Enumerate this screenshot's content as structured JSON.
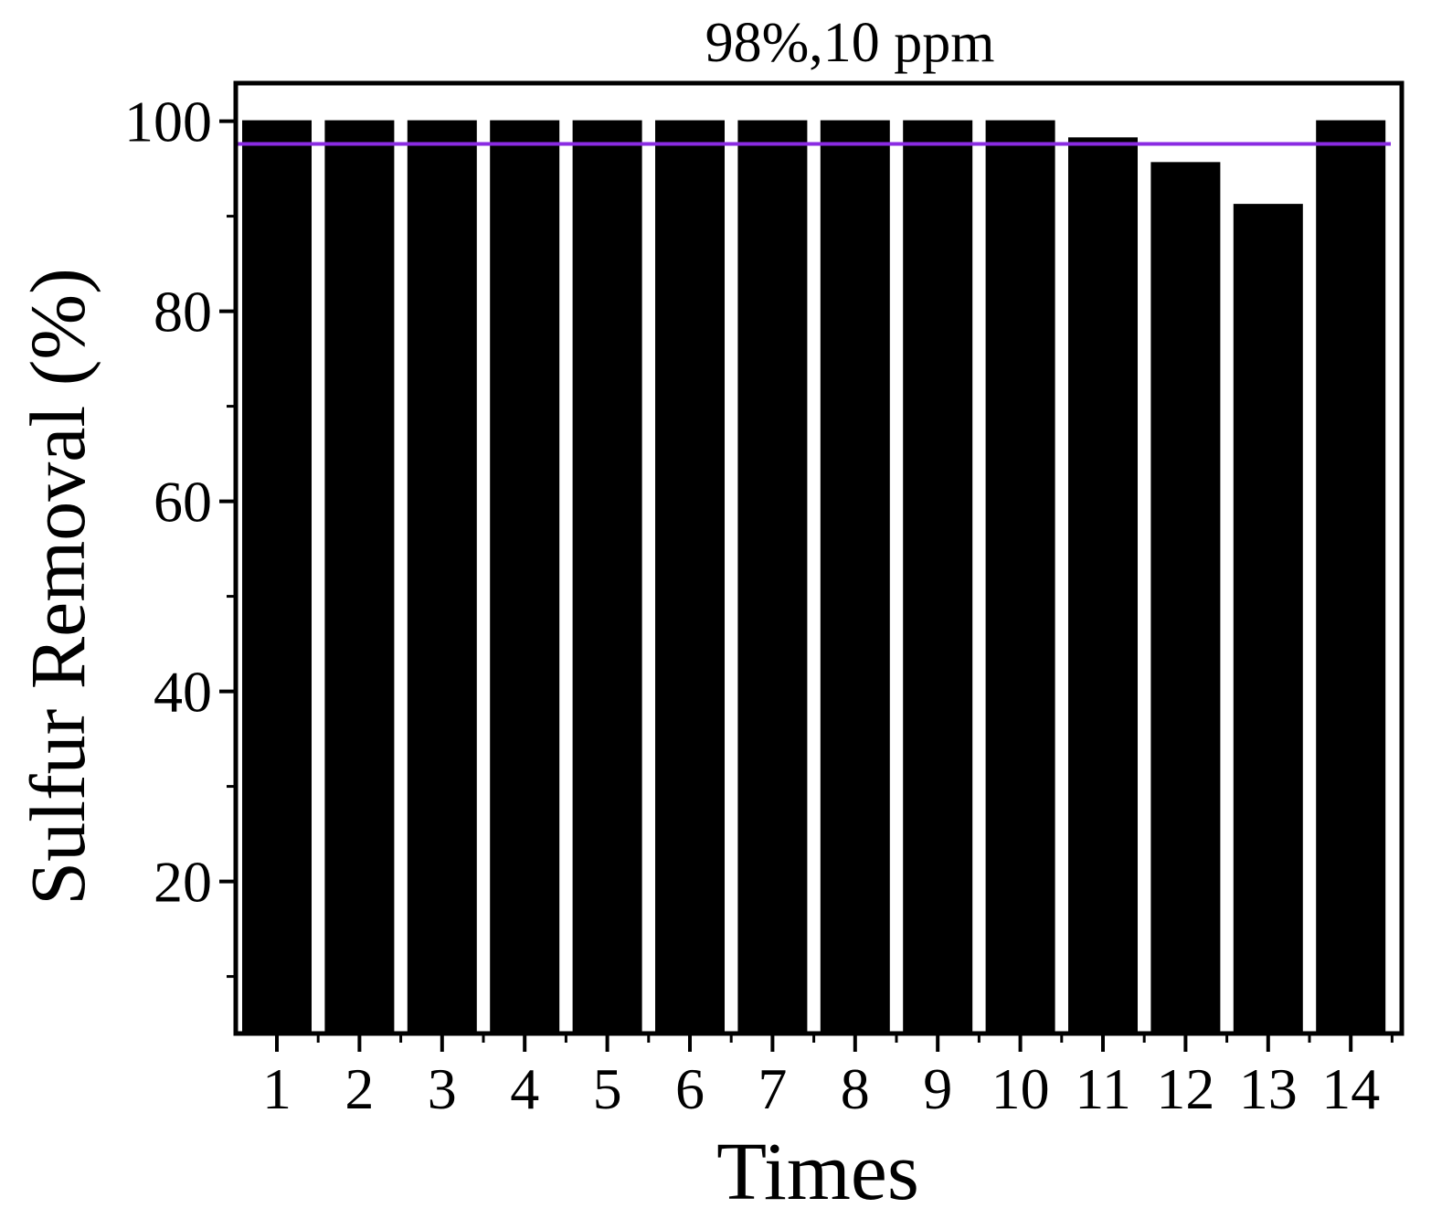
{
  "chart_data": {
    "type": "bar",
    "annotation": "98%,10 ppm",
    "xlabel": "Times",
    "ylabel": "Sulfur Removal (%)",
    "categories": [
      "1",
      "2",
      "3",
      "4",
      "5",
      "6",
      "7",
      "8",
      "9",
      "10",
      "11",
      "12",
      "13",
      "14"
    ],
    "values": [
      100,
      100,
      100,
      100,
      100,
      100,
      100,
      100,
      100,
      100,
      98.2,
      95.6,
      91.2,
      100
    ],
    "reference_line": {
      "value": 97.6,
      "color": "#8a2be2"
    },
    "ylim": [
      4,
      104
    ],
    "yticks": [
      20,
      40,
      60,
      80,
      100
    ],
    "bar_color": "#000000",
    "grid": false,
    "legend": "none"
  }
}
